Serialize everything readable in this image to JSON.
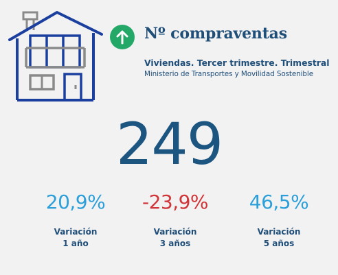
{
  "header": {
    "title": "Nº compraventas",
    "subtitle": "Viviendas. Tercer trimestre. Trimestral",
    "source": "Ministerio de Transportes y Movilidad Sostenible",
    "trend_icon": "arrow-up-icon",
    "house_icon": "house-icon"
  },
  "main": {
    "value": "249"
  },
  "variations": [
    {
      "value": "20,9%",
      "label_line1": "Variación",
      "label_line2": "1 año",
      "color": "#2b9fd9"
    },
    {
      "value": "-23,9%",
      "label_line1": "Variación",
      "label_line2": "3 años",
      "color": "#d13438"
    },
    {
      "value": "46,5%",
      "label_line1": "Variación",
      "label_line2": "5 años",
      "color": "#2b9fd9"
    }
  ],
  "colors": {
    "background": "#f2f2f2",
    "primary": "#1f4e79",
    "main_value": "#1c5580",
    "positive": "#2b9fd9",
    "negative": "#d13438",
    "trend_badge": "#24a867",
    "house_stroke": "#1a3f9e",
    "house_detail": "#8a8a8a"
  }
}
